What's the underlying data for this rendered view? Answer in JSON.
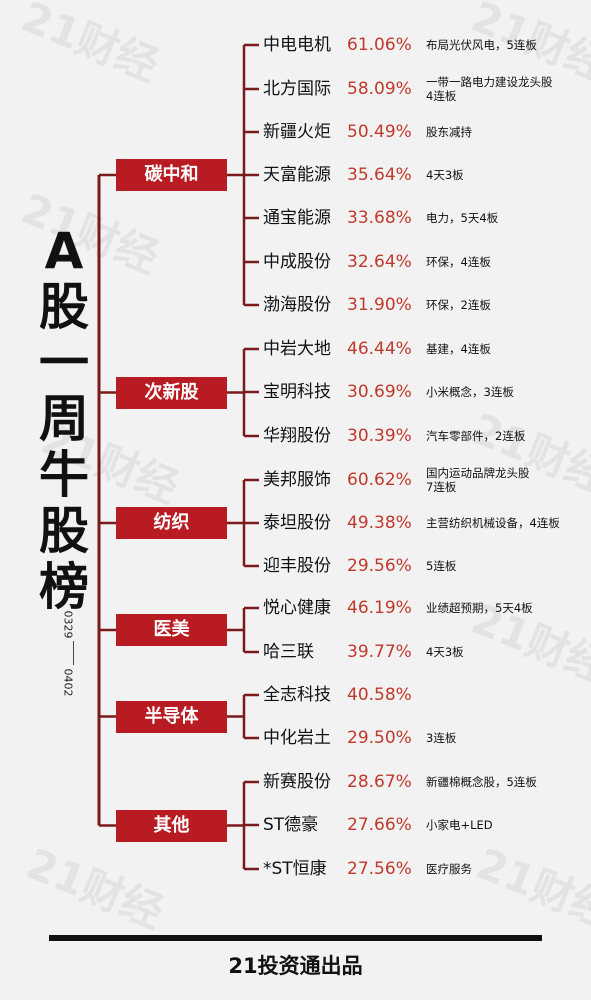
{
  "watermark": "21财经",
  "title_chars": [
    "A",
    "股",
    "一",
    "周",
    "牛",
    "股",
    "榜"
  ],
  "date_start": "0329",
  "date_end": "0402",
  "colors": {
    "accent": "#b81c22",
    "percent": "#c0392b",
    "line": "#7a1a1a"
  },
  "categories": [
    {
      "label": "碳中和",
      "stocks": [
        {
          "name": "中电电机",
          "pct": "61.06%",
          "note": "布局光伏风电，5连板"
        },
        {
          "name": "北方国际",
          "pct": "58.09%",
          "note": "一带一路电力建设龙头股\n4连板"
        },
        {
          "name": "新疆火炬",
          "pct": "50.49%",
          "note": "股东减持"
        },
        {
          "name": "天富能源",
          "pct": "35.64%",
          "note": "4天3板"
        },
        {
          "name": "通宝能源",
          "pct": "33.68%",
          "note": "电力，5天4板"
        },
        {
          "name": "中成股份",
          "pct": "32.64%",
          "note": "环保，4连板"
        },
        {
          "name": "渤海股份",
          "pct": "31.90%",
          "note": "环保，2连板"
        }
      ]
    },
    {
      "label": "次新股",
      "stocks": [
        {
          "name": "中岩大地",
          "pct": "46.44%",
          "note": "基建，4连板"
        },
        {
          "name": "宝明科技",
          "pct": "30.69%",
          "note": "小米概念，3连板"
        },
        {
          "name": "华翔股份",
          "pct": "30.39%",
          "note": "汽车零部件，2连板"
        }
      ]
    },
    {
      "label": "纺织",
      "stocks": [
        {
          "name": "美邦服饰",
          "pct": "60.62%",
          "note": "国内运动品牌龙头股\n7连板"
        },
        {
          "name": "泰坦股份",
          "pct": "49.38%",
          "note": "主营纺织机械设备，4连板"
        },
        {
          "name": "迎丰股份",
          "pct": "29.56%",
          "note": "5连板"
        }
      ]
    },
    {
      "label": "医美",
      "stocks": [
        {
          "name": "悦心健康",
          "pct": "46.19%",
          "note": "业绩超预期，5天4板"
        },
        {
          "name": "哈三联",
          "pct": "39.77%",
          "note": "4天3板"
        }
      ]
    },
    {
      "label": "半导体",
      "stocks": [
        {
          "name": "全志科技",
          "pct": "40.58%",
          "note": ""
        },
        {
          "name": "中化岩土",
          "pct": "29.50%",
          "note": "3连板"
        }
      ]
    },
    {
      "label": "其他",
      "stocks": [
        {
          "name": "新赛股份",
          "pct": "28.67%",
          "note": "新疆棉概念股，5连板"
        },
        {
          "name": "ST德豪",
          "pct": "27.66%",
          "note": "小家电+LED"
        },
        {
          "name": "*ST恒康",
          "pct": "27.56%",
          "note": "医疗服务"
        }
      ]
    }
  ],
  "footer": "21投资通出品"
}
